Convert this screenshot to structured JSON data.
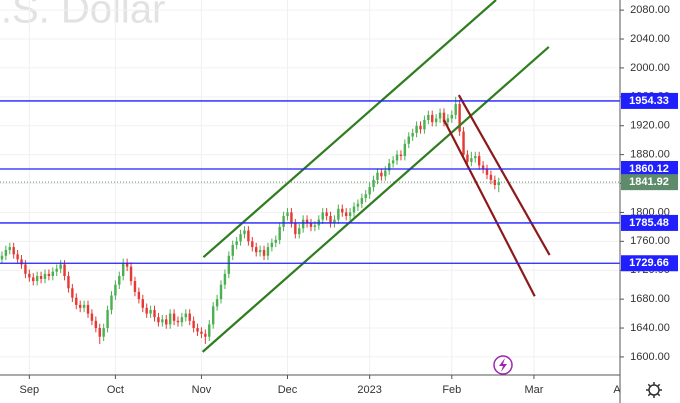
{
  "chart_data": {
    "type": "candlestick",
    "title": "U.S. Dollar",
    "xlim": [
      -0.5,
      158
    ],
    "ylim": [
      1575,
      2094
    ],
    "yticks": [
      {
        "value": 1600,
        "label": "1600.00"
      },
      {
        "value": 1640,
        "label": "1640.00"
      },
      {
        "value": 1680,
        "label": "1680.00"
      },
      {
        "value": 1720,
        "label": "1720.00"
      },
      {
        "value": 1760,
        "label": "1760.00"
      },
      {
        "value": 1800,
        "label": "1800.00"
      },
      {
        "value": 1840,
        "label": "1840.00"
      },
      {
        "value": 1880,
        "label": "1880.00"
      },
      {
        "value": 1920,
        "label": "1920.00"
      },
      {
        "value": 1960,
        "label": "1960.00"
      },
      {
        "value": 2000,
        "label": "2000.00"
      },
      {
        "value": 2040,
        "label": "2040.00"
      },
      {
        "value": 2080,
        "label": "2080.00"
      }
    ],
    "xticks": [
      {
        "value": 7,
        "label": "Sep"
      },
      {
        "value": 29,
        "label": "Oct"
      },
      {
        "value": 51,
        "label": "Nov"
      },
      {
        "value": 73,
        "label": "Dec"
      },
      {
        "value": 94,
        "label": "2023"
      },
      {
        "value": 115,
        "label": "Feb"
      },
      {
        "value": 136,
        "label": "Mar"
      },
      {
        "value": 158.5,
        "label": "Apr"
      }
    ],
    "grid": true,
    "up_color": "#4caf50",
    "down_color": "#e53935",
    "open": [
      1735,
      1740,
      1748,
      1752,
      1742,
      1735,
      1728,
      1715,
      1710,
      1705,
      1712,
      1708,
      1715,
      1712,
      1718,
      1722,
      1728,
      1712,
      1695,
      1682,
      1672,
      1668,
      1672,
      1660,
      1650,
      1640,
      1628,
      1640,
      1665,
      1685,
      1700,
      1712,
      1730,
      1725,
      1705,
      1690,
      1680,
      1668,
      1660,
      1665,
      1655,
      1648,
      1652,
      1645,
      1660,
      1650,
      1648,
      1655,
      1660,
      1650,
      1640,
      1635,
      1632,
      1628,
      1645,
      1670,
      1680,
      1700,
      1715,
      1740,
      1755,
      1760,
      1770,
      1775,
      1760,
      1752,
      1745,
      1748,
      1740,
      1752,
      1758,
      1762,
      1780,
      1795,
      1800,
      1785,
      1770,
      1778,
      1790,
      1785,
      1780,
      1782,
      1790,
      1800,
      1795,
      1785,
      1790,
      1805,
      1800,
      1795,
      1800,
      1808,
      1812,
      1820,
      1825,
      1835,
      1845,
      1855,
      1850,
      1858,
      1868,
      1872,
      1880,
      1878,
      1895,
      1905,
      1910,
      1920,
      1915,
      1928,
      1935,
      1925,
      1930,
      1938,
      1925,
      1930,
      1935,
      1950,
      1912,
      1880,
      1870,
      1875,
      1878,
      1865,
      1860,
      1852,
      1845,
      1838
    ],
    "high": [
      1746,
      1754,
      1758,
      1758,
      1748,
      1741,
      1734,
      1721,
      1716,
      1718,
      1718,
      1721,
      1721,
      1724,
      1728,
      1734,
      1734,
      1718,
      1701,
      1688,
      1678,
      1678,
      1678,
      1666,
      1656,
      1646,
      1646,
      1671,
      1691,
      1706,
      1718,
      1736,
      1736,
      1731,
      1711,
      1696,
      1686,
      1674,
      1671,
      1671,
      1661,
      1658,
      1658,
      1666,
      1666,
      1656,
      1661,
      1666,
      1666,
      1656,
      1646,
      1641,
      1638,
      1651,
      1676,
      1686,
      1706,
      1721,
      1746,
      1761,
      1766,
      1776,
      1781,
      1781,
      1766,
      1758,
      1754,
      1754,
      1758,
      1764,
      1768,
      1786,
      1801,
      1806,
      1806,
      1791,
      1784,
      1796,
      1796,
      1791,
      1788,
      1796,
      1806,
      1806,
      1801,
      1796,
      1811,
      1811,
      1806,
      1806,
      1814,
      1818,
      1826,
      1831,
      1841,
      1851,
      1861,
      1861,
      1864,
      1874,
      1878,
      1886,
      1886,
      1901,
      1911,
      1916,
      1926,
      1926,
      1934,
      1941,
      1941,
      1936,
      1944,
      1944,
      1936,
      1941,
      1960,
      1956,
      1918,
      1886,
      1884,
      1884,
      1884,
      1871,
      1866,
      1858,
      1851,
      1848
    ],
    "low": [
      1729,
      1734,
      1742,
      1736,
      1729,
      1722,
      1709,
      1704,
      1699,
      1699,
      1702,
      1702,
      1706,
      1706,
      1712,
      1716,
      1706,
      1689,
      1676,
      1666,
      1662,
      1662,
      1654,
      1644,
      1634,
      1618,
      1622,
      1634,
      1659,
      1679,
      1694,
      1706,
      1719,
      1699,
      1684,
      1674,
      1662,
      1654,
      1654,
      1649,
      1642,
      1642,
      1639,
      1639,
      1644,
      1642,
      1642,
      1649,
      1644,
      1634,
      1629,
      1626,
      1618,
      1622,
      1639,
      1664,
      1674,
      1694,
      1709,
      1734,
      1749,
      1754,
      1764,
      1754,
      1746,
      1739,
      1739,
      1734,
      1734,
      1746,
      1752,
      1756,
      1774,
      1789,
      1779,
      1764,
      1764,
      1772,
      1779,
      1774,
      1774,
      1776,
      1784,
      1789,
      1779,
      1779,
      1784,
      1794,
      1789,
      1789,
      1794,
      1802,
      1806,
      1814,
      1819,
      1829,
      1839,
      1844,
      1844,
      1852,
      1862,
      1866,
      1872,
      1872,
      1889,
      1899,
      1904,
      1909,
      1909,
      1922,
      1919,
      1919,
      1924,
      1919,
      1919,
      1924,
      1929,
      1906,
      1874,
      1864,
      1864,
      1869,
      1859,
      1854,
      1846,
      1839,
      1832,
      1828
    ],
    "close": [
      1740,
      1748,
      1752,
      1742,
      1735,
      1728,
      1715,
      1710,
      1705,
      1712,
      1708,
      1715,
      1712,
      1718,
      1722,
      1728,
      1712,
      1695,
      1682,
      1672,
      1668,
      1672,
      1660,
      1650,
      1640,
      1628,
      1640,
      1665,
      1685,
      1700,
      1712,
      1730,
      1725,
      1705,
      1690,
      1680,
      1668,
      1660,
      1665,
      1655,
      1648,
      1652,
      1645,
      1660,
      1650,
      1648,
      1655,
      1660,
      1650,
      1640,
      1635,
      1632,
      1628,
      1645,
      1670,
      1680,
      1700,
      1715,
      1740,
      1755,
      1760,
      1770,
      1775,
      1760,
      1752,
      1745,
      1748,
      1740,
      1752,
      1758,
      1762,
      1780,
      1795,
      1800,
      1785,
      1770,
      1778,
      1790,
      1785,
      1780,
      1782,
      1790,
      1800,
      1795,
      1785,
      1790,
      1805,
      1800,
      1795,
      1800,
      1808,
      1812,
      1820,
      1825,
      1835,
      1845,
      1855,
      1850,
      1858,
      1868,
      1872,
      1880,
      1878,
      1895,
      1905,
      1910,
      1920,
      1915,
      1928,
      1935,
      1925,
      1930,
      1938,
      1925,
      1930,
      1935,
      1950,
      1912,
      1880,
      1870,
      1875,
      1878,
      1865,
      1860,
      1852,
      1845,
      1838,
      1841.92
    ],
    "levels": {
      "color": "#1f1fff",
      "values": [
        1954.33,
        1860.12,
        1785.48,
        1729.66
      ]
    },
    "last_price": {
      "value": 1841.92,
      "color": "#5e8c6a"
    },
    "trend_lines": [
      {
        "color": "#2e7d1e",
        "x": [
          51.5,
          126.3
        ],
        "y": [
          1738,
          2094
        ]
      },
      {
        "color": "#2e7d1e",
        "x": [
          51.3,
          139.8
        ],
        "y": [
          1607,
          2029
        ]
      },
      {
        "color": "#8b1a1a",
        "x": [
          116.8,
          140
        ],
        "y": [
          1962.4,
          1741
        ]
      },
      {
        "color": "#8b1a1a",
        "x": [
          113,
          136.2
        ],
        "y": [
          1928,
          1684
        ]
      }
    ]
  }
}
